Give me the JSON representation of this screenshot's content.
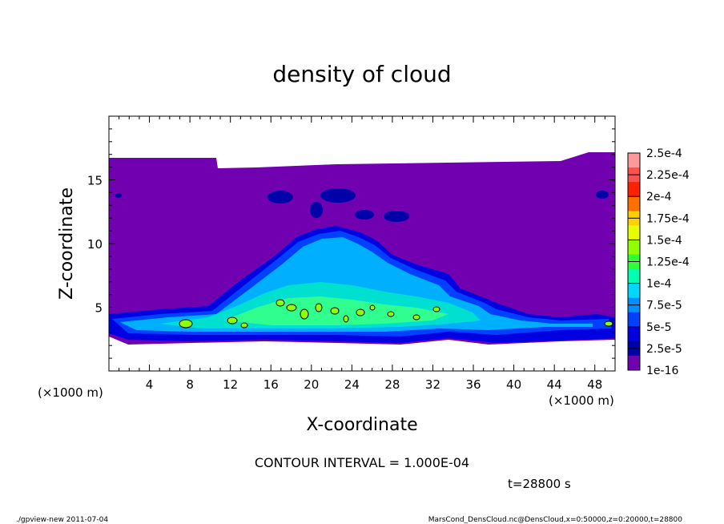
{
  "chart_data": {
    "type": "heatmap",
    "title": "density of cloud",
    "xlabel": "X-coordinate",
    "ylabel": "Z-coordinate",
    "x_unit": "(×1000 m)",
    "y_unit": "(×1000 m)",
    "xlim": [
      0,
      50
    ],
    "ylim": [
      0,
      20
    ],
    "x_ticks": [
      4,
      8,
      12,
      16,
      20,
      24,
      28,
      32,
      36,
      40,
      44,
      48
    ],
    "y_ticks": [
      5,
      10,
      15
    ],
    "colorbar": {
      "labels": [
        "2.5e-4",
        "2.25e-4",
        "2e-4",
        "1.75e-4",
        "1.5e-4",
        "1.25e-4",
        "1e-4",
        "7.5e-5",
        "5e-5",
        "2.5e-5",
        "1e-16"
      ],
      "colors": [
        "#ff9999",
        "#ff5050",
        "#ff2000",
        "#ff7000",
        "#ffd000",
        "#e8ff00",
        "#90ff00",
        "#30ff30",
        "#00ffb0",
        "#00d8ff",
        "#0090ff",
        "#0040ff",
        "#0000e0",
        "#0000a8",
        "#7000b0"
      ]
    },
    "cloud_layer": {
      "top_z": 16.6,
      "base_z": 2.3,
      "background_value": "1e-16",
      "core_region": {
        "x_range": [
          1,
          50
        ],
        "z_range": [
          2.5,
          11
        ],
        "peak_x": 20,
        "peak_z": 10.5
      }
    }
  },
  "header": {
    "contour_interval": "CONTOUR INTERVAL = 1.000E-04"
  },
  "time_label": "t=28800 s",
  "footer": {
    "left": "./gpview-new   2011-07-04",
    "right": "MarsCond_DensCloud.nc@DensCloud,x=0:50000,z=0:20000,t=28800"
  }
}
